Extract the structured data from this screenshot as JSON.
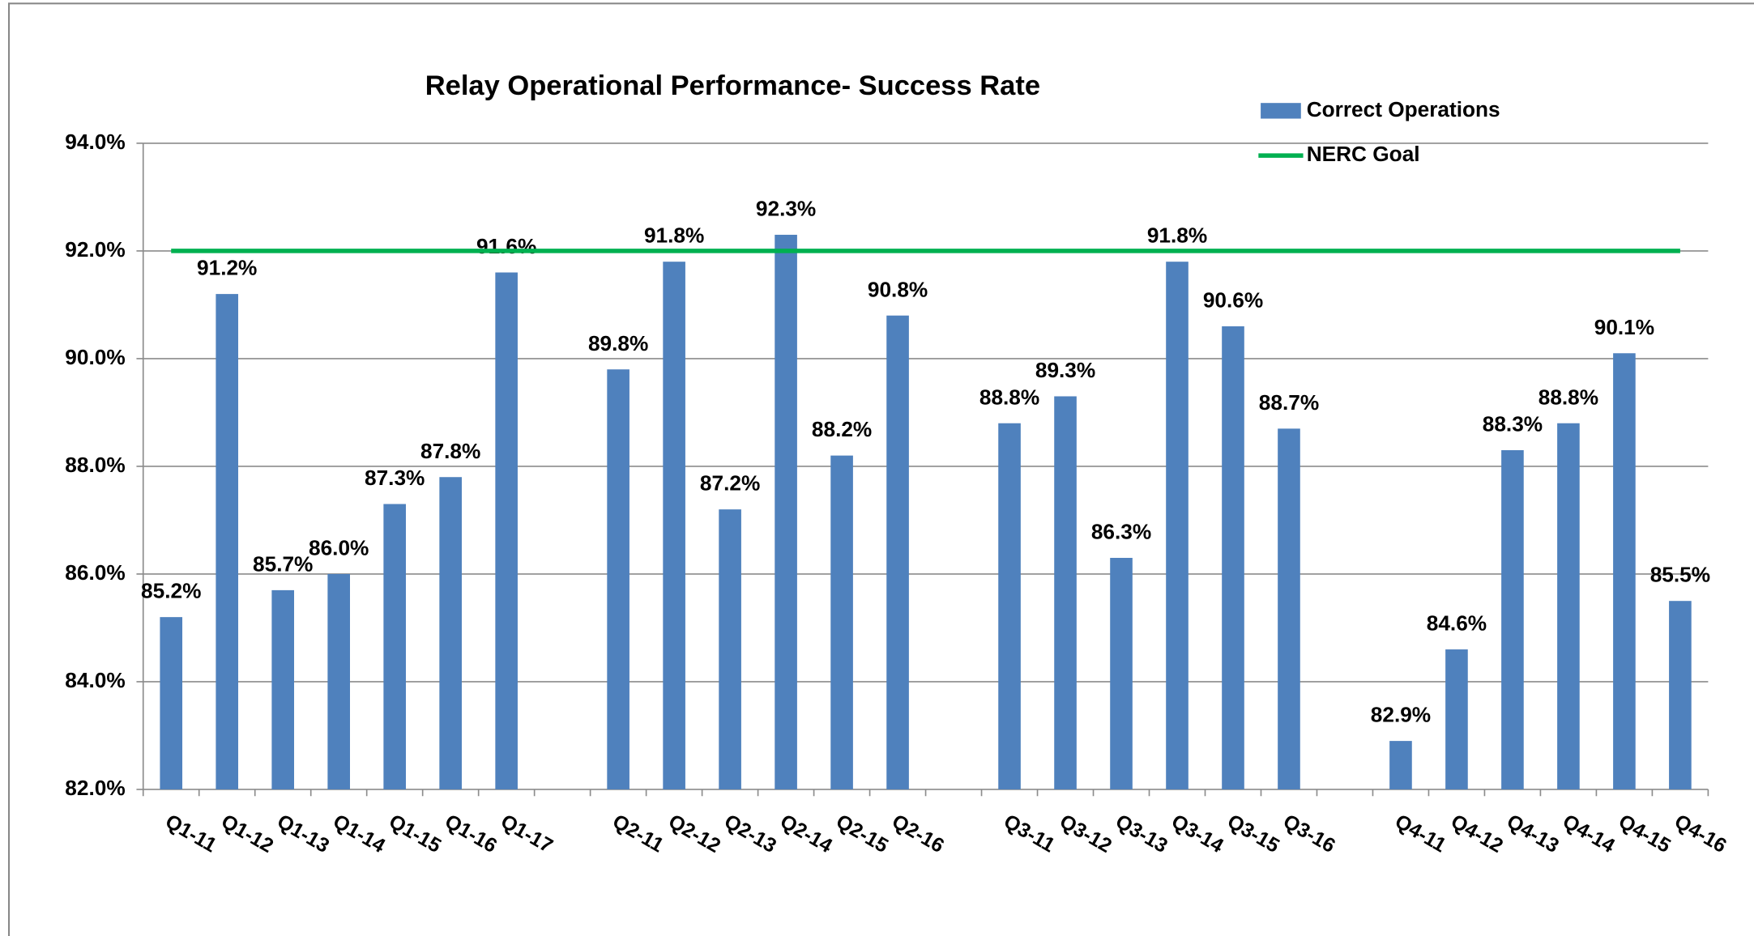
{
  "chart_data": {
    "type": "bar",
    "title": "Relay Operational Performance- Success Rate",
    "categories": [
      "Q1-11",
      "Q1-12",
      "Q1-13",
      "Q1-14",
      "Q1-15",
      "Q1-16",
      "Q1-17",
      null,
      "Q2-11",
      "Q2-12",
      "Q2-13",
      "Q2-14",
      "Q2-15",
      "Q2-16",
      null,
      "Q3-11",
      "Q3-12",
      "Q3-13",
      "Q3-14",
      "Q3-15",
      "Q3-16",
      null,
      "Q4-11",
      "Q4-12",
      "Q4-13",
      "Q4-14",
      "Q4-15",
      "Q4-16"
    ],
    "series": [
      {
        "name": "Correct Operations",
        "color": "#4f81bd",
        "values": [
          85.2,
          91.2,
          85.7,
          86.0,
          87.3,
          87.8,
          91.6,
          null,
          89.8,
          91.8,
          87.2,
          92.3,
          88.2,
          90.8,
          null,
          88.8,
          89.3,
          86.3,
          91.8,
          90.6,
          88.7,
          null,
          82.9,
          84.6,
          88.3,
          88.8,
          90.1,
          85.5
        ],
        "value_labels": [
          "85.2%",
          "91.2%",
          "85.7%",
          "86.0%",
          "87.3%",
          "87.8%",
          "91.6%",
          null,
          "89.8%",
          "91.8%",
          "87.2%",
          "92.3%",
          "88.2%",
          "90.8%",
          null,
          "88.8%",
          "89.3%",
          "86.3%",
          "91.8%",
          "90.6%",
          "88.7%",
          null,
          "82.9%",
          "84.6%",
          "88.3%",
          "88.8%",
          "90.1%",
          "85.5%"
        ]
      }
    ],
    "goal": {
      "name": "NERC Goal",
      "value": 92,
      "color": "#00b050"
    },
    "ylim": [
      82,
      94
    ],
    "yticks": [
      {
        "value": 82,
        "label": "82.0%"
      },
      {
        "value": 84,
        "label": "84.0%"
      },
      {
        "value": 86,
        "label": "86.0%"
      },
      {
        "value": 88,
        "label": "88.0%"
      },
      {
        "value": 90,
        "label": "90.0%"
      },
      {
        "value": 92,
        "label": "92.0%"
      },
      {
        "value": 94,
        "label": "94.0%"
      }
    ],
    "grid": true,
    "legend": "top-right"
  }
}
